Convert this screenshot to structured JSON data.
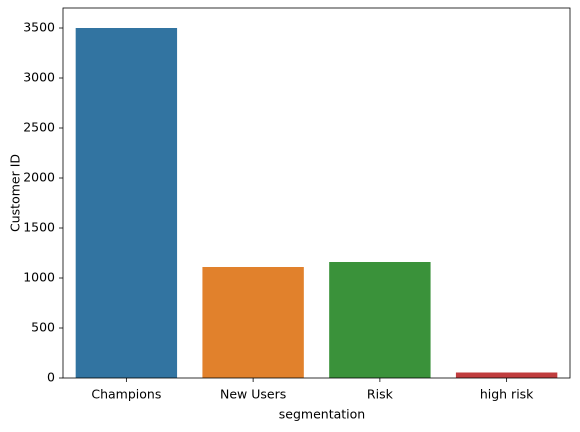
{
  "chart_data": {
    "type": "bar",
    "x_label": "segmentation",
    "y_label": "Customer ID",
    "categories": [
      "Champions",
      "New Users",
      "Risk",
      "high risk"
    ],
    "values": [
      3500,
      1110,
      1160,
      55
    ],
    "colors": [
      "#3274a1",
      "#e1812c",
      "#3a923a",
      "#c03d3e"
    ],
    "ylim": [
      0,
      3700
    ],
    "yticks": [
      0,
      500,
      1000,
      1500,
      2000,
      2500,
      3000,
      3500
    ],
    "grid": false
  }
}
